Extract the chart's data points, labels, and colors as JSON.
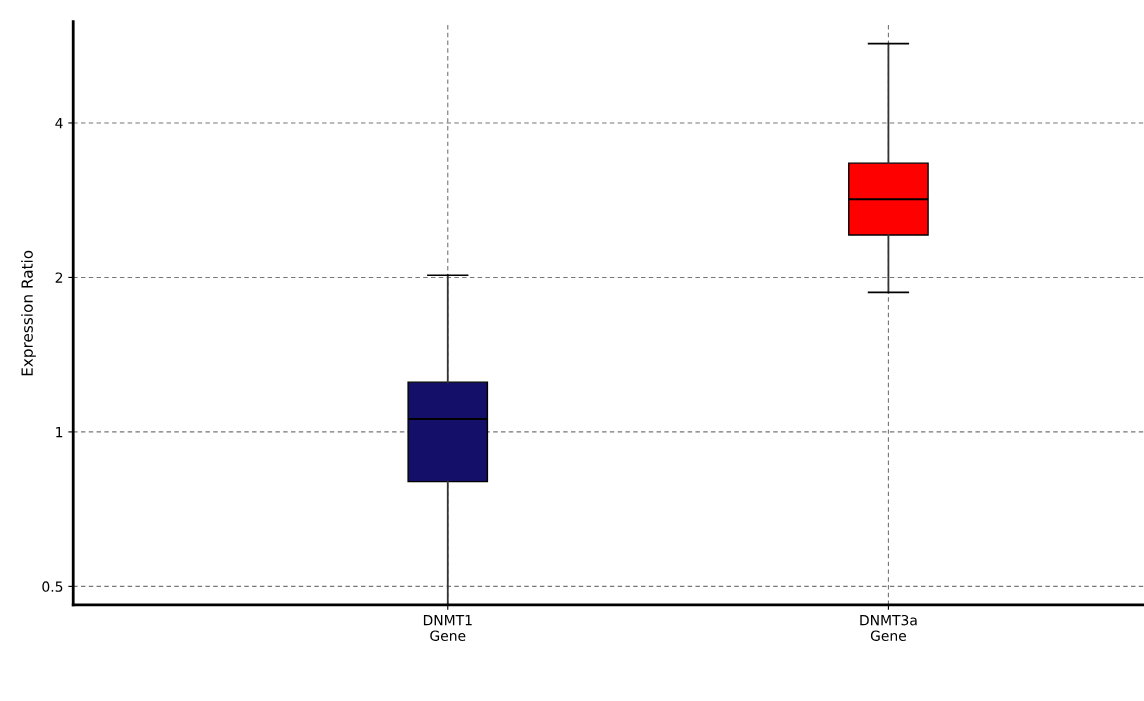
{
  "chart_data": {
    "type": "box",
    "ylabel": "Expression Ratio",
    "categories": [
      "DNMT1\nGene",
      "DNMT3a\nGene"
    ],
    "colors": [
      "#14106a",
      "#ff0000"
    ],
    "boxes": [
      {
        "low": 0.46,
        "q1": 0.8,
        "median": 1.06,
        "q3": 1.25,
        "high": 2.02
      },
      {
        "low": 1.87,
        "q1": 2.42,
        "median": 2.84,
        "q3": 3.34,
        "high": 5.71
      }
    ],
    "log": "y",
    "ylim": [
      0.46,
      6.3
    ],
    "yticks": [
      0.5,
      1,
      2,
      4
    ],
    "grid": true
  }
}
